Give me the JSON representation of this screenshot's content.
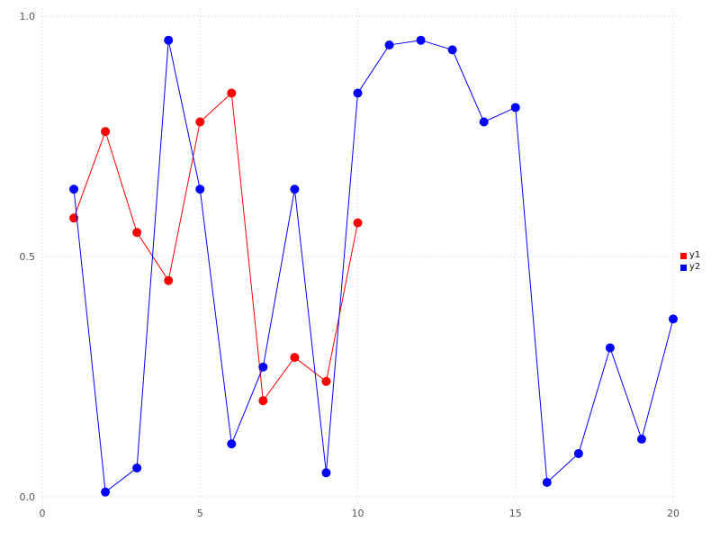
{
  "chart_data": {
    "type": "line",
    "title": "",
    "xlabel": "",
    "ylabel": "",
    "xlim": [
      0,
      20
    ],
    "ylim": [
      0,
      1
    ],
    "x_ticks": [
      0,
      5,
      10,
      15,
      20
    ],
    "x_tick_labels": [
      "0",
      "5",
      "10",
      "15",
      "20"
    ],
    "y_ticks": [
      0,
      0.5,
      1.0
    ],
    "y_tick_labels": [
      "0.0",
      "0.5",
      "1.0"
    ],
    "grid": true,
    "legend_position": "right",
    "marker": "circle",
    "series": [
      {
        "name": "y1",
        "color": "#ff0000",
        "x": [
          1,
          2,
          3,
          4,
          5,
          6,
          7,
          8,
          9,
          10
        ],
        "y": [
          0.58,
          0.76,
          0.55,
          0.45,
          0.78,
          0.84,
          0.2,
          0.29,
          0.24,
          0.57
        ]
      },
      {
        "name": "y2",
        "color": "#0000ff",
        "x": [
          1,
          2,
          3,
          4,
          5,
          6,
          7,
          8,
          9,
          10,
          11,
          12,
          13,
          14,
          15,
          16,
          17,
          18,
          19,
          20
        ],
        "y": [
          0.64,
          0.01,
          0.06,
          0.95,
          0.64,
          0.11,
          0.27,
          0.64,
          0.05,
          0.84,
          0.94,
          0.95,
          0.93,
          0.78,
          0.81,
          0.03,
          0.09,
          0.31,
          0.12,
          0.37
        ]
      }
    ],
    "colors": {
      "background": "#ffffff",
      "grid": "#d0d0d0",
      "tick_text": "#555555"
    }
  }
}
